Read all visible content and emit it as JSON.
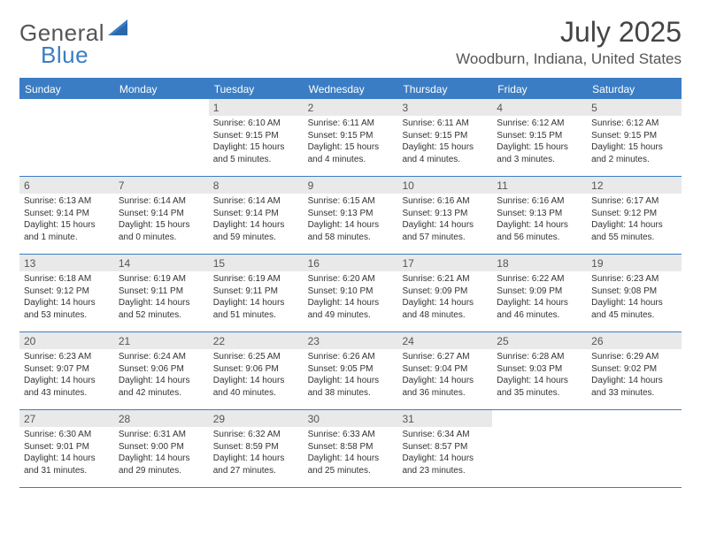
{
  "logo": {
    "general": "General",
    "blue": "Blue"
  },
  "title": "July 2025",
  "location": "Woodburn, Indiana, United States",
  "colors": {
    "accent": "#3a7dc4",
    "header_text": "#ffffff",
    "body_text": "#333333",
    "shaded_bg": "#e9e9e9"
  },
  "dayHeaders": [
    "Sunday",
    "Monday",
    "Tuesday",
    "Wednesday",
    "Thursday",
    "Friday",
    "Saturday"
  ],
  "weeks": [
    [
      {
        "empty": true
      },
      {
        "empty": true
      },
      {
        "num": "1",
        "shaded": true,
        "sunrise": "Sunrise: 6:10 AM",
        "sunset": "Sunset: 9:15 PM",
        "daylight": "Daylight: 15 hours and 5 minutes."
      },
      {
        "num": "2",
        "shaded": true,
        "sunrise": "Sunrise: 6:11 AM",
        "sunset": "Sunset: 9:15 PM",
        "daylight": "Daylight: 15 hours and 4 minutes."
      },
      {
        "num": "3",
        "shaded": true,
        "sunrise": "Sunrise: 6:11 AM",
        "sunset": "Sunset: 9:15 PM",
        "daylight": "Daylight: 15 hours and 4 minutes."
      },
      {
        "num": "4",
        "shaded": true,
        "sunrise": "Sunrise: 6:12 AM",
        "sunset": "Sunset: 9:15 PM",
        "daylight": "Daylight: 15 hours and 3 minutes."
      },
      {
        "num": "5",
        "shaded": true,
        "sunrise": "Sunrise: 6:12 AM",
        "sunset": "Sunset: 9:15 PM",
        "daylight": "Daylight: 15 hours and 2 minutes."
      }
    ],
    [
      {
        "num": "6",
        "shaded": true,
        "sunrise": "Sunrise: 6:13 AM",
        "sunset": "Sunset: 9:14 PM",
        "daylight": "Daylight: 15 hours and 1 minute."
      },
      {
        "num": "7",
        "shaded": true,
        "sunrise": "Sunrise: 6:14 AM",
        "sunset": "Sunset: 9:14 PM",
        "daylight": "Daylight: 15 hours and 0 minutes."
      },
      {
        "num": "8",
        "shaded": true,
        "sunrise": "Sunrise: 6:14 AM",
        "sunset": "Sunset: 9:14 PM",
        "daylight": "Daylight: 14 hours and 59 minutes."
      },
      {
        "num": "9",
        "shaded": true,
        "sunrise": "Sunrise: 6:15 AM",
        "sunset": "Sunset: 9:13 PM",
        "daylight": "Daylight: 14 hours and 58 minutes."
      },
      {
        "num": "10",
        "shaded": true,
        "sunrise": "Sunrise: 6:16 AM",
        "sunset": "Sunset: 9:13 PM",
        "daylight": "Daylight: 14 hours and 57 minutes."
      },
      {
        "num": "11",
        "shaded": true,
        "sunrise": "Sunrise: 6:16 AM",
        "sunset": "Sunset: 9:13 PM",
        "daylight": "Daylight: 14 hours and 56 minutes."
      },
      {
        "num": "12",
        "shaded": true,
        "sunrise": "Sunrise: 6:17 AM",
        "sunset": "Sunset: 9:12 PM",
        "daylight": "Daylight: 14 hours and 55 minutes."
      }
    ],
    [
      {
        "num": "13",
        "shaded": true,
        "sunrise": "Sunrise: 6:18 AM",
        "sunset": "Sunset: 9:12 PM",
        "daylight": "Daylight: 14 hours and 53 minutes."
      },
      {
        "num": "14",
        "shaded": true,
        "sunrise": "Sunrise: 6:19 AM",
        "sunset": "Sunset: 9:11 PM",
        "daylight": "Daylight: 14 hours and 52 minutes."
      },
      {
        "num": "15",
        "shaded": true,
        "sunrise": "Sunrise: 6:19 AM",
        "sunset": "Sunset: 9:11 PM",
        "daylight": "Daylight: 14 hours and 51 minutes."
      },
      {
        "num": "16",
        "shaded": true,
        "sunrise": "Sunrise: 6:20 AM",
        "sunset": "Sunset: 9:10 PM",
        "daylight": "Daylight: 14 hours and 49 minutes."
      },
      {
        "num": "17",
        "shaded": true,
        "sunrise": "Sunrise: 6:21 AM",
        "sunset": "Sunset: 9:09 PM",
        "daylight": "Daylight: 14 hours and 48 minutes."
      },
      {
        "num": "18",
        "shaded": true,
        "sunrise": "Sunrise: 6:22 AM",
        "sunset": "Sunset: 9:09 PM",
        "daylight": "Daylight: 14 hours and 46 minutes."
      },
      {
        "num": "19",
        "shaded": true,
        "sunrise": "Sunrise: 6:23 AM",
        "sunset": "Sunset: 9:08 PM",
        "daylight": "Daylight: 14 hours and 45 minutes."
      }
    ],
    [
      {
        "num": "20",
        "shaded": true,
        "sunrise": "Sunrise: 6:23 AM",
        "sunset": "Sunset: 9:07 PM",
        "daylight": "Daylight: 14 hours and 43 minutes."
      },
      {
        "num": "21",
        "shaded": true,
        "sunrise": "Sunrise: 6:24 AM",
        "sunset": "Sunset: 9:06 PM",
        "daylight": "Daylight: 14 hours and 42 minutes."
      },
      {
        "num": "22",
        "shaded": true,
        "sunrise": "Sunrise: 6:25 AM",
        "sunset": "Sunset: 9:06 PM",
        "daylight": "Daylight: 14 hours and 40 minutes."
      },
      {
        "num": "23",
        "shaded": true,
        "sunrise": "Sunrise: 6:26 AM",
        "sunset": "Sunset: 9:05 PM",
        "daylight": "Daylight: 14 hours and 38 minutes."
      },
      {
        "num": "24",
        "shaded": true,
        "sunrise": "Sunrise: 6:27 AM",
        "sunset": "Sunset: 9:04 PM",
        "daylight": "Daylight: 14 hours and 36 minutes."
      },
      {
        "num": "25",
        "shaded": true,
        "sunrise": "Sunrise: 6:28 AM",
        "sunset": "Sunset: 9:03 PM",
        "daylight": "Daylight: 14 hours and 35 minutes."
      },
      {
        "num": "26",
        "shaded": true,
        "sunrise": "Sunrise: 6:29 AM",
        "sunset": "Sunset: 9:02 PM",
        "daylight": "Daylight: 14 hours and 33 minutes."
      }
    ],
    [
      {
        "num": "27",
        "shaded": true,
        "sunrise": "Sunrise: 6:30 AM",
        "sunset": "Sunset: 9:01 PM",
        "daylight": "Daylight: 14 hours and 31 minutes."
      },
      {
        "num": "28",
        "shaded": true,
        "sunrise": "Sunrise: 6:31 AM",
        "sunset": "Sunset: 9:00 PM",
        "daylight": "Daylight: 14 hours and 29 minutes."
      },
      {
        "num": "29",
        "shaded": true,
        "sunrise": "Sunrise: 6:32 AM",
        "sunset": "Sunset: 8:59 PM",
        "daylight": "Daylight: 14 hours and 27 minutes."
      },
      {
        "num": "30",
        "shaded": true,
        "sunrise": "Sunrise: 6:33 AM",
        "sunset": "Sunset: 8:58 PM",
        "daylight": "Daylight: 14 hours and 25 minutes."
      },
      {
        "num": "31",
        "shaded": true,
        "sunrise": "Sunrise: 6:34 AM",
        "sunset": "Sunset: 8:57 PM",
        "daylight": "Daylight: 14 hours and 23 minutes."
      },
      {
        "empty": true
      },
      {
        "empty": true
      }
    ]
  ]
}
